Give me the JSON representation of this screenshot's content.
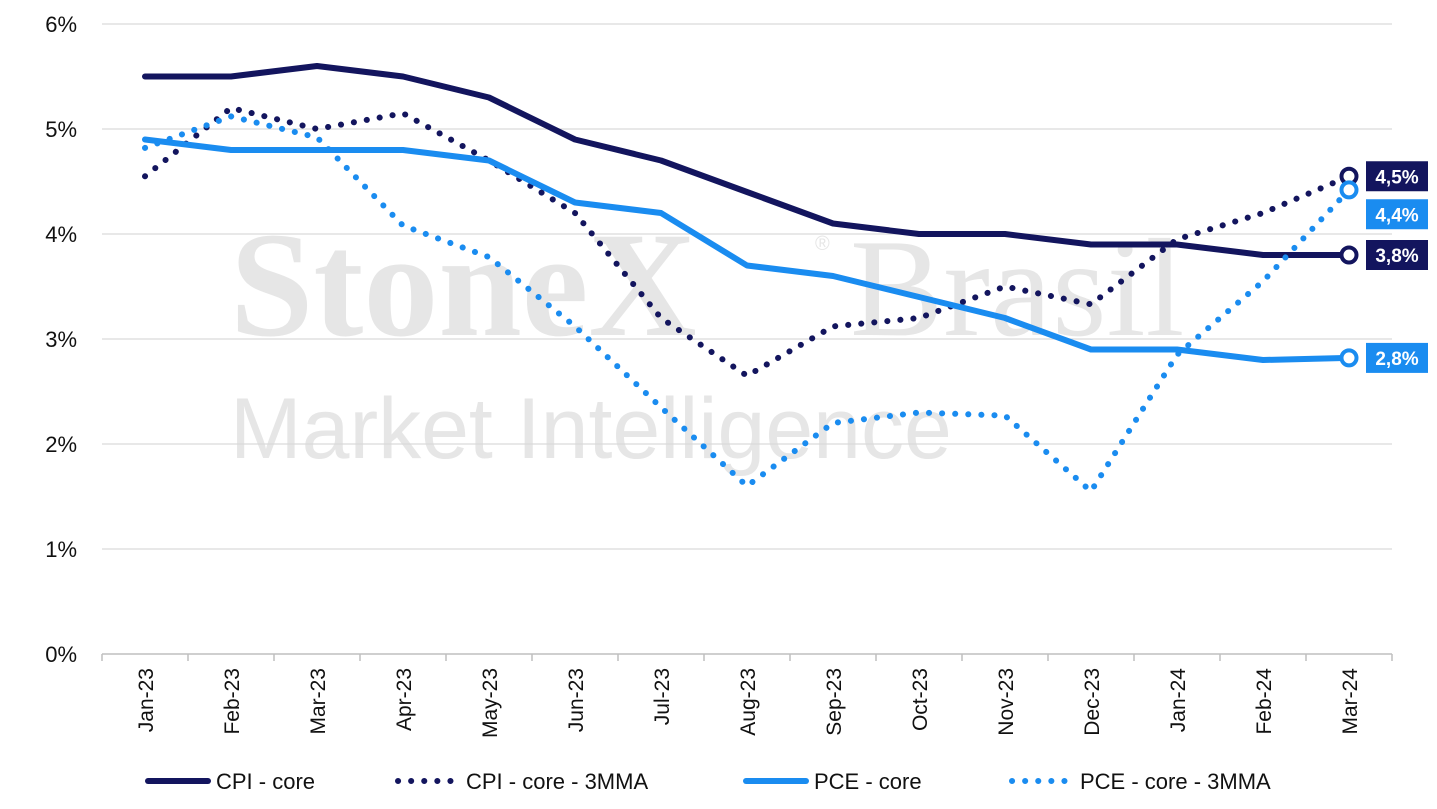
{
  "watermark": {
    "line1_bold": "StoneX",
    "line1_light": "Brasil",
    "registered": "®",
    "line2": "Market Intelligence"
  },
  "chart_data": {
    "type": "line",
    "categories": [
      "Jan-23",
      "Feb-23",
      "Mar-23",
      "Apr-23",
      "May-23",
      "Jun-23",
      "Jul-23",
      "Aug-23",
      "Sep-23",
      "Oct-23",
      "Nov-23",
      "Dec-23",
      "Jan-24",
      "Feb-24",
      "Mar-24"
    ],
    "ylim": [
      0,
      6
    ],
    "y_ticks": [
      "0%",
      "1%",
      "2%",
      "3%",
      "4%",
      "5%",
      "6%"
    ],
    "grid": true,
    "legend_position": "bottom",
    "series": [
      {
        "name": "CPI - core",
        "color": "#13155e",
        "style": "solid",
        "values": [
          5.5,
          5.5,
          5.6,
          5.5,
          5.3,
          4.9,
          4.7,
          4.4,
          4.1,
          4.0,
          4.0,
          3.9,
          3.9,
          3.8,
          3.8
        ],
        "end_label": "3,8%"
      },
      {
        "name": "CPI - core - 3MMA",
        "color": "#13155e",
        "style": "dotted",
        "values": [
          4.55,
          5.2,
          5.0,
          5.15,
          4.7,
          4.2,
          3.2,
          2.65,
          3.12,
          3.2,
          3.5,
          3.33,
          3.95,
          4.2,
          4.55
        ],
        "end_label": "4,5%"
      },
      {
        "name": "PCE - core",
        "color": "#1a8cf0",
        "style": "solid",
        "values": [
          4.9,
          4.8,
          4.8,
          4.8,
          4.7,
          4.3,
          4.2,
          3.7,
          3.6,
          3.4,
          3.2,
          2.9,
          2.9,
          2.8,
          2.82
        ],
        "end_label": "2,8%"
      },
      {
        "name": "PCE - core - 3MMA",
        "color": "#1a8cf0",
        "style": "dotted",
        "values": [
          4.82,
          5.12,
          4.92,
          4.08,
          3.78,
          3.12,
          2.35,
          1.6,
          2.2,
          2.3,
          2.27,
          1.55,
          2.85,
          3.55,
          4.42
        ],
        "end_label": "4,4%"
      }
    ]
  }
}
